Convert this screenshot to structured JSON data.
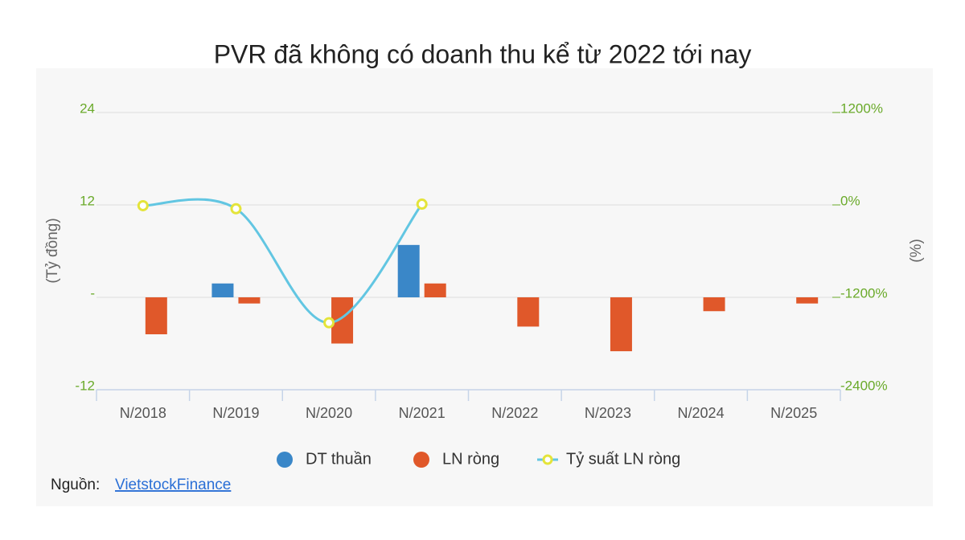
{
  "chart_data": {
    "type": "bar",
    "title": "PVR đã không có doanh thu kể từ 2022 tới nay",
    "y_label": "(Tỷ đồng)",
    "y2_label": "(%)",
    "categories": [
      "N/2018",
      "N/2019",
      "N/2020",
      "N/2021",
      "N/2022",
      "N/2023",
      "N/2024",
      "N/2025"
    ],
    "series": [
      {
        "name": "DT thuần",
        "color": "#3a87c8",
        "values": [
          0,
          1.8,
          0,
          6.8,
          0,
          0,
          0,
          0
        ]
      },
      {
        "name": "LN ròng",
        "color": "#e0582a",
        "values": [
          -4.8,
          -0.8,
          -6,
          1.8,
          -3.8,
          -7,
          -1.8,
          -0.8
        ]
      },
      {
        "name": "Tỷ suất LN ròng",
        "type": "line",
        "axis": "y2",
        "color": "#62c6e2",
        "marker_color": "#e4e43a",
        "values": [
          -10,
          -50,
          -1530,
          10,
          null,
          null,
          null,
          null
        ]
      }
    ],
    "ylim": [
      -12,
      24
    ],
    "yticks": [
      -12,
      {
        "value": 0,
        "label": "-"
      },
      12,
      24
    ],
    "y2lim": [
      -2400,
      1200
    ],
    "y2ticks": [
      {
        "value": -2400,
        "label": "-2400%"
      },
      {
        "value": -1200,
        "label": "-1200%"
      },
      {
        "value": 0,
        "label": "0%"
      },
      {
        "value": 1200,
        "label": "1200%"
      }
    ],
    "grid": true,
    "source": {
      "label": "Nguồn:",
      "link": "VietstockFinance"
    }
  }
}
